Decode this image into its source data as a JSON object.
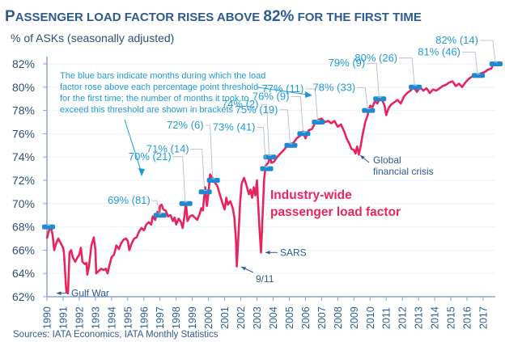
{
  "chart_data": {
    "type": "line",
    "title_first": "P",
    "title_rest_1": "ASSENGER LOAD FACTOR RISES ABOVE ",
    "title_highlight": "82%",
    "title_rest_2": " FOR THE FIRST TIME",
    "title": "Passenger load factor rises above 82% for the first time",
    "ylabel": "% of ASKs (seasonally adjusted)",
    "xlabel": "",
    "ylim": [
      62,
      82
    ],
    "xlim": [
      1990,
      2018
    ],
    "yticks": [
      62,
      64,
      66,
      68,
      70,
      72,
      74,
      76,
      78,
      80,
      82
    ],
    "ytick_labels": [
      "62%",
      "64%",
      "66%",
      "68%",
      "70%",
      "72%",
      "74%",
      "76%",
      "78%",
      "80%",
      "82%"
    ],
    "xtick_labels": [
      "1990",
      "1991",
      "1992",
      "1993",
      "1994",
      "1995",
      "1996",
      "1997",
      "1998",
      "1999",
      "2000",
      "2001",
      "2002",
      "2003",
      "2004",
      "2005",
      "2006",
      "2007",
      "2008",
      "2009",
      "2010",
      "2011",
      "2012",
      "2013",
      "2014",
      "2015",
      "2016",
      "2017"
    ],
    "grid": true,
    "series": [
      {
        "name": "Industry-wide passenger load factor",
        "color": "#E8245E",
        "points": [
          [
            1990.0,
            67.0
          ],
          [
            1990.1,
            67.6
          ],
          [
            1990.25,
            68.0
          ],
          [
            1990.35,
            67.3
          ],
          [
            1990.45,
            66.0
          ],
          [
            1990.55,
            66.5
          ],
          [
            1990.7,
            67.0
          ],
          [
            1990.85,
            66.6
          ],
          [
            1991.0,
            66.2
          ],
          [
            1991.05,
            65.8
          ],
          [
            1991.15,
            63.5
          ],
          [
            1991.2,
            62.4
          ],
          [
            1991.3,
            62.3
          ],
          [
            1991.4,
            65.8
          ],
          [
            1991.5,
            66.0
          ],
          [
            1991.6,
            65.4
          ],
          [
            1991.75,
            65.0
          ],
          [
            1991.9,
            65.4
          ],
          [
            1992.0,
            65.6
          ],
          [
            1992.1,
            66.2
          ],
          [
            1992.2,
            65.0
          ],
          [
            1992.35,
            64.8
          ],
          [
            1992.45,
            64.9
          ],
          [
            1992.5,
            63.9
          ],
          [
            1992.6,
            64.6
          ],
          [
            1992.75,
            66.4
          ],
          [
            1992.9,
            67.1
          ],
          [
            1993.0,
            66.0
          ],
          [
            1993.05,
            64.0
          ],
          [
            1993.2,
            64.2
          ],
          [
            1993.35,
            64.4
          ],
          [
            1993.5,
            64.3
          ],
          [
            1993.65,
            64.4
          ],
          [
            1993.75,
            64.0
          ],
          [
            1993.85,
            64.6
          ],
          [
            1994.0,
            65.4
          ],
          [
            1994.15,
            65.6
          ],
          [
            1994.3,
            66.4
          ],
          [
            1994.45,
            66.1
          ],
          [
            1994.6,
            66.6
          ],
          [
            1994.75,
            66.9
          ],
          [
            1994.9,
            67.0
          ],
          [
            1995.0,
            66.8
          ],
          [
            1995.1,
            66.0
          ],
          [
            1995.25,
            66.6
          ],
          [
            1995.4,
            67.0
          ],
          [
            1995.55,
            67.1
          ],
          [
            1995.7,
            67.6
          ],
          [
            1995.85,
            67.9
          ],
          [
            1996.0,
            67.7
          ],
          [
            1996.15,
            68.2
          ],
          [
            1996.3,
            68.4
          ],
          [
            1996.45,
            68.2
          ],
          [
            1996.55,
            68.9
          ],
          [
            1996.7,
            68.6
          ],
          [
            1996.85,
            69.3
          ],
          [
            1996.95,
            69.0
          ],
          [
            1997.0,
            69.8
          ],
          [
            1997.1,
            69.9
          ],
          [
            1997.2,
            69.5
          ],
          [
            1997.35,
            69.4
          ],
          [
            1997.5,
            68.9
          ],
          [
            1997.65,
            69.0
          ],
          [
            1997.8,
            68.5
          ],
          [
            1997.9,
            68.8
          ],
          [
            1998.0,
            68.2
          ],
          [
            1998.15,
            68.7
          ],
          [
            1998.3,
            68.4
          ],
          [
            1998.4,
            67.9
          ],
          [
            1998.5,
            68.8
          ],
          [
            1998.6,
            70.1
          ],
          [
            1998.7,
            68.5
          ],
          [
            1998.85,
            68.9
          ],
          [
            1999.0,
            69.0
          ],
          [
            1999.15,
            68.8
          ],
          [
            1999.3,
            68.6
          ],
          [
            1999.45,
            69.1
          ],
          [
            1999.55,
            69.6
          ],
          [
            1999.65,
            69.4
          ],
          [
            1999.8,
            71.4
          ],
          [
            1999.9,
            69.8
          ],
          [
            2000.0,
            70.9
          ],
          [
            2000.1,
            72.5
          ],
          [
            2000.25,
            72.2
          ],
          [
            2000.4,
            71.8
          ],
          [
            2000.55,
            71.5
          ],
          [
            2000.7,
            70.8
          ],
          [
            2000.85,
            70.1
          ],
          [
            2001.0,
            69.5
          ],
          [
            2001.1,
            70.5
          ],
          [
            2001.2,
            69.9
          ],
          [
            2001.35,
            70.2
          ],
          [
            2001.5,
            69.6
          ],
          [
            2001.6,
            68.8
          ],
          [
            2001.7,
            66.8
          ],
          [
            2001.75,
            64.6
          ],
          [
            2001.85,
            67.2
          ],
          [
            2001.95,
            70.0
          ],
          [
            2002.05,
            71.7
          ],
          [
            2002.2,
            72.2
          ],
          [
            2002.35,
            71.6
          ],
          [
            2002.5,
            70.8
          ],
          [
            2002.6,
            71.2
          ],
          [
            2002.7,
            70.5
          ],
          [
            2002.8,
            71.4
          ],
          [
            2002.9,
            70.7
          ],
          [
            2003.0,
            72.0
          ],
          [
            2003.05,
            70.6
          ],
          [
            2003.15,
            68.0
          ],
          [
            2003.25,
            65.8
          ],
          [
            2003.35,
            69.0
          ],
          [
            2003.45,
            72.2
          ],
          [
            2003.55,
            73.3
          ],
          [
            2003.7,
            73.5
          ],
          [
            2003.8,
            74.1
          ],
          [
            2003.9,
            73.5
          ],
          [
            2004.05,
            73.6
          ],
          [
            2004.25,
            74.0
          ],
          [
            2004.45,
            74.3
          ],
          [
            2004.65,
            74.6
          ],
          [
            2004.85,
            74.9
          ],
          [
            2005.05,
            75.1
          ],
          [
            2005.25,
            75.2
          ],
          [
            2005.45,
            75.6
          ],
          [
            2005.65,
            75.8
          ],
          [
            2005.85,
            76.2
          ],
          [
            2006.0,
            75.6
          ],
          [
            2006.2,
            76.3
          ],
          [
            2006.4,
            76.4
          ],
          [
            2006.6,
            76.9
          ],
          [
            2006.8,
            77.2
          ],
          [
            2007.0,
            77.3
          ],
          [
            2007.2,
            77.0
          ],
          [
            2007.4,
            77.1
          ],
          [
            2007.6,
            76.9
          ],
          [
            2007.8,
            77.1
          ],
          [
            2008.0,
            76.6
          ],
          [
            2008.2,
            76.8
          ],
          [
            2008.4,
            76.2
          ],
          [
            2008.55,
            75.6
          ],
          [
            2008.7,
            75.2
          ],
          [
            2008.85,
            74.7
          ],
          [
            2009.0,
            74.6
          ],
          [
            2009.1,
            74.3
          ],
          [
            2009.2,
            74.9
          ],
          [
            2009.3,
            74.2
          ],
          [
            2009.4,
            74.8
          ],
          [
            2009.55,
            76.0
          ],
          [
            2009.7,
            77.0
          ],
          [
            2009.85,
            77.6
          ],
          [
            2010.0,
            78.4
          ],
          [
            2010.15,
            78.3
          ],
          [
            2010.3,
            78.8
          ],
          [
            2010.45,
            78.6
          ],
          [
            2010.6,
            79.0
          ],
          [
            2010.75,
            78.9
          ],
          [
            2010.9,
            78.4
          ],
          [
            2011.0,
            77.6
          ],
          [
            2011.15,
            78.2
          ],
          [
            2011.3,
            78.5
          ],
          [
            2011.5,
            78.7
          ],
          [
            2011.7,
            78.9
          ],
          [
            2011.9,
            78.6
          ],
          [
            2012.1,
            79.2
          ],
          [
            2012.3,
            79.5
          ],
          [
            2012.5,
            79.7
          ],
          [
            2012.7,
            80.0
          ],
          [
            2012.9,
            79.6
          ],
          [
            2013.1,
            80.0
          ],
          [
            2013.3,
            79.7
          ],
          [
            2013.5,
            79.9
          ],
          [
            2013.7,
            79.5
          ],
          [
            2013.9,
            79.8
          ],
          [
            2014.1,
            79.7
          ],
          [
            2014.3,
            79.9
          ],
          [
            2014.5,
            80.1
          ],
          [
            2014.7,
            80.2
          ],
          [
            2014.9,
            80.4
          ],
          [
            2015.1,
            80.5
          ],
          [
            2015.3,
            80.1
          ],
          [
            2015.5,
            80.3
          ],
          [
            2015.7,
            80.0
          ],
          [
            2015.9,
            80.4
          ],
          [
            2016.1,
            80.7
          ],
          [
            2016.3,
            80.9
          ],
          [
            2016.5,
            80.9
          ],
          [
            2016.7,
            81.1
          ],
          [
            2016.9,
            81.2
          ],
          [
            2017.1,
            81.3
          ],
          [
            2017.3,
            81.5
          ],
          [
            2017.5,
            81.6
          ],
          [
            2017.65,
            82.0
          ],
          [
            2017.85,
            82.1
          ]
        ]
      }
    ],
    "thresholds": [
      {
        "label": "69% (81)",
        "value": 69,
        "months": 81,
        "x": 1997.0
      },
      {
        "label": "70% (21)",
        "value": 70,
        "months": 21,
        "x": 1998.6
      },
      {
        "label": "71% (14)",
        "value": 71,
        "months": 14,
        "x": 1999.8
      },
      {
        "label": "72% (6)",
        "value": 72,
        "months": 6,
        "x": 2000.3
      },
      {
        "label": "73% (41)",
        "value": 73,
        "months": 41,
        "x": 2003.6
      },
      {
        "label": "74% (2)",
        "value": 74,
        "months": 2,
        "x": 2003.8
      },
      {
        "label": "75% (19)",
        "value": 75,
        "months": 19,
        "x": 2005.1
      },
      {
        "label": "76% (9)",
        "value": 76,
        "months": 9,
        "x": 2005.9
      },
      {
        "label": "77% (11)",
        "value": 77,
        "months": 11,
        "x": 2006.8
      },
      {
        "label": "78% (33)",
        "value": 78,
        "months": 33,
        "x": 2009.9
      },
      {
        "label": "79% (9)",
        "value": 79,
        "months": 9,
        "x": 2010.6
      },
      {
        "label": "80% (26)",
        "value": 80,
        "months": 26,
        "x": 2012.8
      },
      {
        "label": "81% (46)",
        "value": 81,
        "months": 46,
        "x": 2016.7
      },
      {
        "label": "82% (14)",
        "value": 82,
        "months": 14,
        "x": 2017.8
      }
    ],
    "initial_bar": {
      "value": 68,
      "x": 1990.1
    },
    "annotations": {
      "note_lines": [
        "The blue bars indicate months during which the load",
        "factor rose above each percentage point threshold",
        "for the first time; the number of months it took to",
        "exceed this threshold are shown in brackets"
      ],
      "events": [
        {
          "label": "Gulf War",
          "x": 1991.3,
          "y": 62.3
        },
        {
          "label": "9/11",
          "x": 2001.75,
          "y": 64.5
        },
        {
          "label": "SARS",
          "x": 2003.25,
          "y": 65.8
        },
        {
          "label": "Global",
          "label2": "financial crisis",
          "x": 2009.3,
          "y": 74.2
        }
      ],
      "series_label_line1": "Industry-wide",
      "series_label_line2": "passenger load factor"
    },
    "source": "Sources: IATA Economics, IATA Monthly Statistics",
    "colors": {
      "line": "#E8245E",
      "bar": "#1E88D0",
      "label_blue": "#1E9AD6",
      "axis": "#8FA3C4",
      "title": "#2E5B8F"
    }
  }
}
